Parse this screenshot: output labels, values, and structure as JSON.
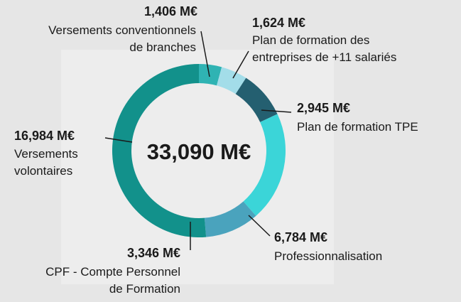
{
  "chart_data": {
    "type": "donut",
    "categories": [
      "Versements conventionnels\nde branches",
      "Plan de formation des\nentreprises de +11 salariés",
      "Plan de formation TPE",
      "Professionnalisation",
      "CPF - Compte Personnel\nde Formation",
      "Versements\nvolontaires"
    ],
    "values": [
      1.406,
      1.624,
      2.945,
      6.784,
      3.346,
      16.984
    ],
    "value_labels": [
      "1,406 M€",
      "1,624 M€",
      "2,945 M€",
      "6,784 M€",
      "3,346 M€",
      "16,984 M€"
    ],
    "colors": [
      "#2fb3b3",
      "#a3dde9",
      "#245f70",
      "#3bd5d8",
      "#4aa3bd",
      "#12918b"
    ],
    "total_label": "33,090 M€"
  }
}
